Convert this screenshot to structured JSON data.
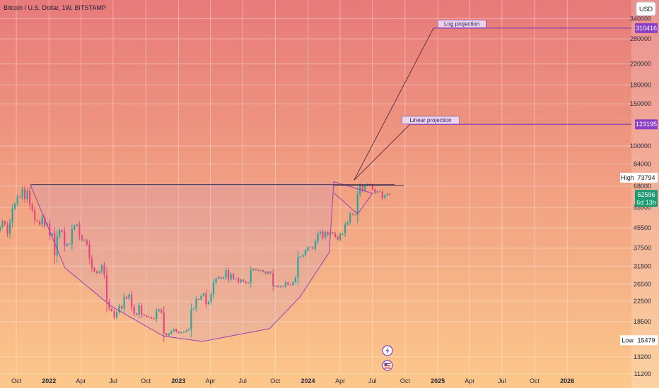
{
  "title": "Bitcoin / U.S. Dollar, 1W, BITSTAMP",
  "currency": "USD",
  "colors": {
    "bg_top": "#e77a7a",
    "bg_bottom": "#fcc88b",
    "up": "#26a69a",
    "down": "#e5467f",
    "purple": "#8a3fc4",
    "green_tag": "#1f9a73"
  },
  "chart_data": {
    "type": "candlestick",
    "y_scale": "log",
    "ylim": [
      11200,
      380000
    ],
    "xlim": [
      "2021-08-16",
      "2026-07-01"
    ],
    "y_ticks": [
      340000,
      280000,
      220000,
      180000,
      150000,
      100000,
      84000,
      68000,
      55500,
      45500,
      37500,
      31500,
      26500,
      22500,
      18500,
      13200,
      11200
    ],
    "x_ticks": [
      {
        "label": "Oct",
        "date": "2021-10-01",
        "bold": false
      },
      {
        "label": "2022",
        "date": "2022-01-01",
        "bold": true
      },
      {
        "label": "Apr",
        "date": "2022-04-01",
        "bold": false
      },
      {
        "label": "Jul",
        "date": "2022-07-01",
        "bold": false
      },
      {
        "label": "Oct",
        "date": "2022-10-01",
        "bold": false
      },
      {
        "label": "2023",
        "date": "2023-01-01",
        "bold": true
      },
      {
        "label": "Apr",
        "date": "2023-04-01",
        "bold": false
      },
      {
        "label": "Jul",
        "date": "2023-07-01",
        "bold": false
      },
      {
        "label": "Oct",
        "date": "2023-10-01",
        "bold": false
      },
      {
        "label": "2024",
        "date": "2024-01-01",
        "bold": true
      },
      {
        "label": "Apr",
        "date": "2024-04-01",
        "bold": false
      },
      {
        "label": "Jul",
        "date": "2024-07-01",
        "bold": false
      },
      {
        "label": "Oct",
        "date": "2024-10-01",
        "bold": false
      },
      {
        "label": "2025",
        "date": "2025-01-01",
        "bold": true
      },
      {
        "label": "Apr",
        "date": "2025-04-01",
        "bold": false
      },
      {
        "label": "Jul",
        "date": "2025-07-01",
        "bold": false
      },
      {
        "label": "Oct",
        "date": "2025-10-01",
        "bold": false
      },
      {
        "label": "2026",
        "date": "2026-01-01",
        "bold": true
      }
    ],
    "candles_start": "2021-08-16",
    "candles_interval_days": 7,
    "closes": [
      46000,
      48500,
      47000,
      43000,
      48000,
      54800,
      57400,
      61500,
      61000,
      66200,
      60000,
      65000,
      57000,
      54000,
      49000,
      48500,
      47000,
      50500,
      46600,
      47500,
      42300,
      43100,
      35000,
      42000,
      44500,
      43900,
      38300,
      39000,
      39000,
      45000,
      46500,
      47000,
      42200,
      40500,
      40500,
      38800,
      34000,
      31000,
      30000,
      29500,
      30000,
      31800,
      29000,
      22500,
      21000,
      20500,
      19300,
      20300,
      21500,
      21000,
      23500,
      23100,
      24000,
      21400,
      20000,
      19800,
      21600,
      19800,
      19600,
      19400,
      19300,
      19100,
      19000,
      20500,
      20800,
      20200,
      16500,
      16200,
      16500,
      16900,
      17200,
      16800,
      16600,
      16700,
      16800,
      17000,
      17200,
      20800,
      21000,
      23000,
      22900,
      23700,
      24300,
      21900,
      22400,
      24100,
      26900,
      28000,
      28400,
      28000,
      28300,
      30300,
      27800,
      29200,
      28000,
      28000,
      27000,
      27700,
      27200,
      26800,
      26900,
      30300,
      30700,
      30500,
      30200,
      30300,
      29900,
      29300,
      29900,
      29500,
      26000,
      26100,
      25800,
      26000,
      25900,
      27000,
      26400,
      26300,
      27100,
      28300,
      34400,
      34500,
      35100,
      36600,
      37800,
      37800,
      37300,
      39900,
      43000,
      43900,
      41500,
      43700,
      42500,
      43600,
      43300,
      41800,
      40700,
      42800,
      43100,
      47000,
      48200,
      52100,
      51700,
      51700,
      63100,
      68200,
      65300,
      68400,
      69500,
      68800,
      66000,
      63800,
      64900,
      64500,
      60600,
      62300,
      63200,
      62600
    ],
    "series": [
      {
        "name": "Log projection",
        "values": [
          310416
        ]
      },
      {
        "name": "Linear projection",
        "values": [
          123195
        ]
      }
    ],
    "reference_lines": [
      {
        "type": "horizontal",
        "value": 69000,
        "from": "2021-11-10",
        "to": "2024-09-01"
      },
      {
        "type": "horizontal",
        "value": 68500,
        "from": "2024-03-14",
        "to": "2024-09-27"
      }
    ],
    "cup_outline": [
      {
        "date": "2021-11-10",
        "value": 68800
      },
      {
        "date": "2022-02-15",
        "value": 31000
      },
      {
        "date": "2022-06-25",
        "value": 21500
      },
      {
        "date": "2022-11-20",
        "value": 16100
      },
      {
        "date": "2023-03-10",
        "value": 15300
      },
      {
        "date": "2023-09-15",
        "value": 17300
      },
      {
        "date": "2023-12-10",
        "value": 23500
      },
      {
        "date": "2024-03-01",
        "value": 36000
      },
      {
        "date": "2024-03-14",
        "value": 71000
      },
      {
        "date": "2024-07-01",
        "value": 63500
      },
      {
        "date": "2024-05-20",
        "value": 52000
      },
      {
        "date": "2024-03-14",
        "value": 63800
      }
    ],
    "log_projection_line": [
      {
        "date": "2024-05-10",
        "value": 72000
      },
      {
        "date": "2024-12-20",
        "value": 310416
      },
      {
        "date": "2026-07-01",
        "value": 310416
      }
    ],
    "linear_projection_line": [
      {
        "date": "2024-05-10",
        "value": 72000
      },
      {
        "date": "2024-10-15",
        "value": 123195
      },
      {
        "date": "2026-07-01",
        "value": 123195
      }
    ],
    "annotations": [
      {
        "text": "Log projection",
        "date": "2025-03-10",
        "value": 318000
      },
      {
        "text": "Linear projection",
        "date": "2024-12-12",
        "value": 126000
      }
    ],
    "price_tags": {
      "log_target": "310416",
      "linear_target": "123195",
      "high_label": "High",
      "high_value": "73794",
      "last_price": "62596",
      "countdown": "6d 13h",
      "low_label": "Low",
      "low_value": "15479"
    }
  }
}
